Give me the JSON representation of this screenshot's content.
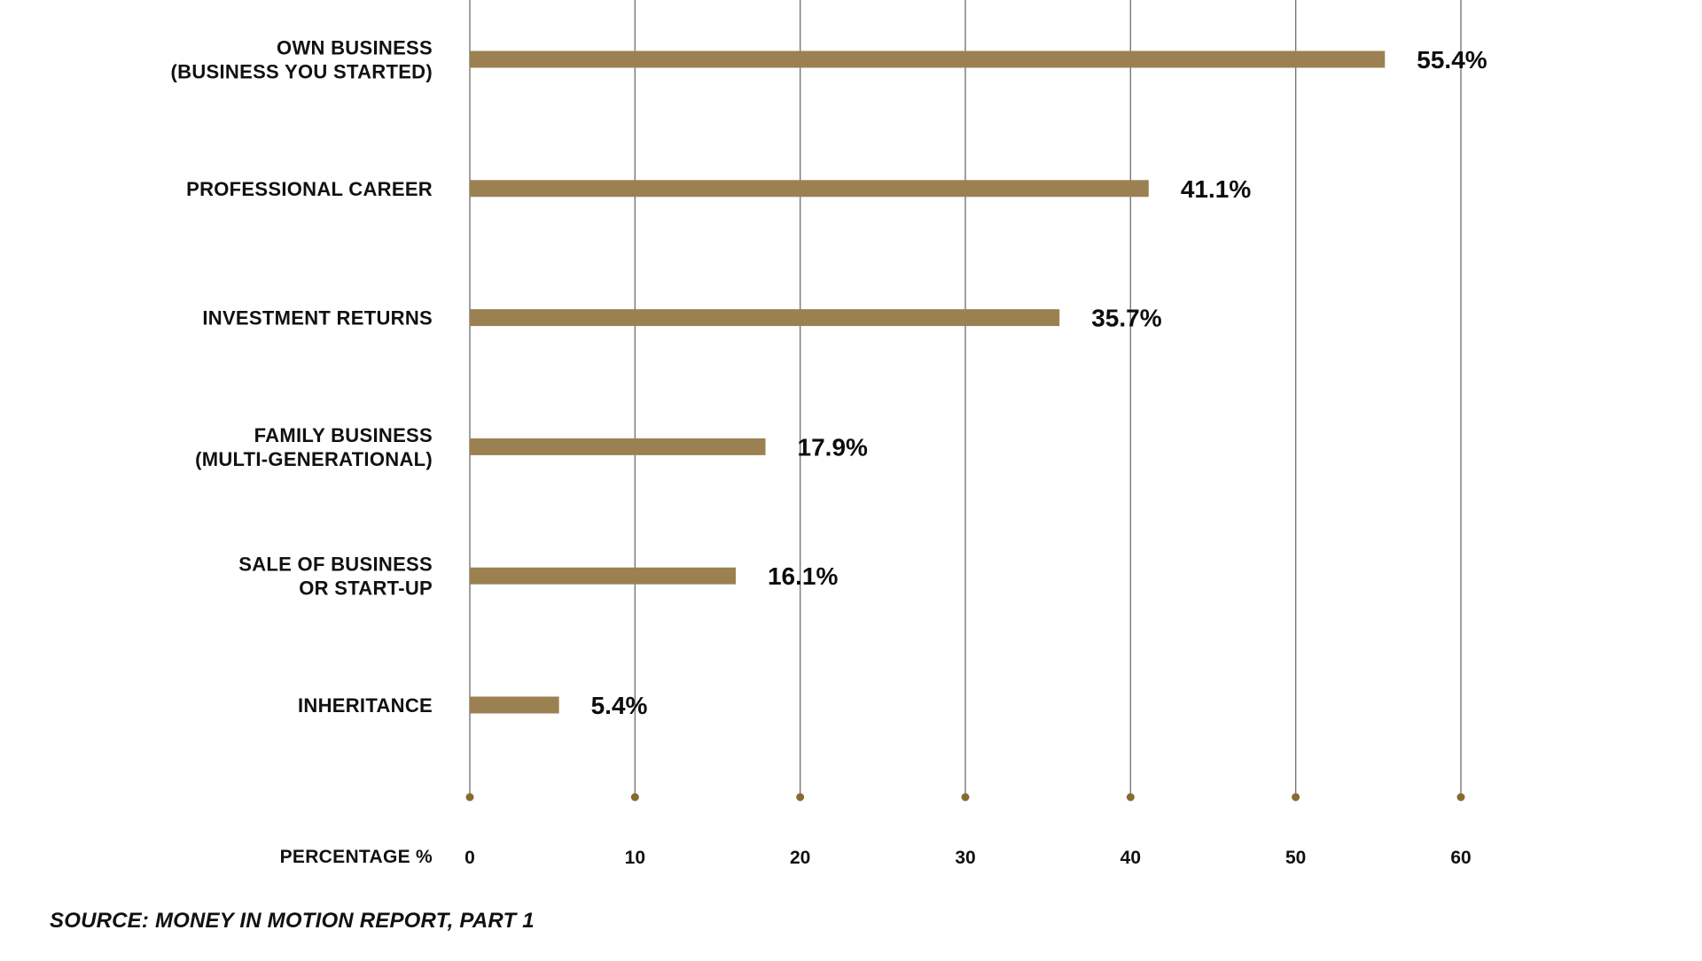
{
  "chart_data": {
    "type": "bar",
    "orientation": "horizontal",
    "categories": [
      [
        "OWN BUSINESS",
        "(BUSINESS YOU STARTED)"
      ],
      [
        "PROFESSIONAL CAREER"
      ],
      [
        "INVESTMENT RETURNS"
      ],
      [
        "FAMILY BUSINESS",
        "(MULTI-GENERATIONAL)"
      ],
      [
        "SALE OF BUSINESS",
        "OR START-UP"
      ],
      [
        "INHERITANCE"
      ]
    ],
    "values": [
      55.4,
      41.1,
      35.7,
      17.9,
      16.1,
      5.4
    ],
    "value_labels": [
      "55.4%",
      "41.1%",
      "35.7%",
      "17.9%",
      "16.1%",
      "5.4%"
    ],
    "x_ticks": [
      "0",
      "10",
      "20",
      "30",
      "40",
      "50",
      "60"
    ],
    "xlim": [
      0,
      60
    ],
    "xlabel": "PERCENTAGE  %",
    "grid": "vertical",
    "bar_color": "#9b8152",
    "dot_color": "#8a6a2e",
    "grid_color": "#777777"
  },
  "source": "SOURCE: MONEY IN  MOTION REPORT, PART 1"
}
